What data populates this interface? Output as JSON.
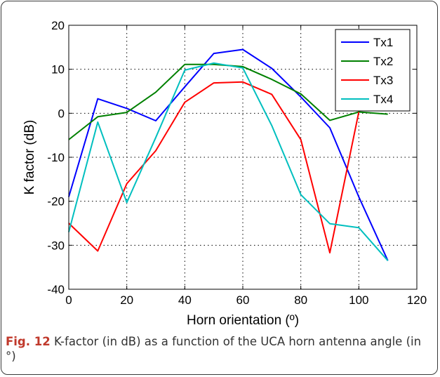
{
  "chart_data": {
    "type": "line",
    "xlabel": "Horn orientation (º)",
    "ylabel": "K factor (dB)",
    "xlim": [
      0,
      120
    ],
    "ylim": [
      -40,
      20
    ],
    "xticks": [
      0,
      20,
      40,
      60,
      80,
      100,
      120
    ],
    "yticks": [
      -40,
      -30,
      -20,
      -10,
      0,
      10,
      20
    ],
    "x_tick_labels": [
      "0",
      "20",
      "40",
      "60",
      "80",
      "100",
      "120"
    ],
    "y_tick_labels": [
      "-40",
      "-30",
      "-20",
      "-10",
      "0",
      "10",
      "20"
    ],
    "grid": true,
    "legend_position": "top-right",
    "x": [
      0,
      10,
      20,
      30,
      40,
      50,
      60,
      70,
      80,
      90,
      100,
      110
    ],
    "series": [
      {
        "name": "Tx1",
        "color": "#0000ff",
        "values": [
          -19,
          3.3,
          1.1,
          -1.7,
          6,
          13.6,
          14.5,
          10.2,
          3.7,
          -3.3,
          -19,
          -33.5
        ]
      },
      {
        "name": "Tx2",
        "color": "#008000",
        "values": [
          -6,
          -0.8,
          0.2,
          4.8,
          11.1,
          11.1,
          10.6,
          7.7,
          4.4,
          -1.6,
          0.3,
          -0.2
        ]
      },
      {
        "name": "Tx3",
        "color": "#ff0000",
        "values": [
          -25,
          -31.3,
          -16,
          -8.5,
          2.5,
          6.9,
          7.1,
          4.3,
          -6,
          -31.7,
          0.3,
          null
        ]
      },
      {
        "name": "Tx4",
        "color": "#00bfbf",
        "values": [
          -27,
          -2,
          -20.3,
          -5.5,
          9.8,
          11.4,
          10.3,
          -2.8,
          -18.5,
          -25.1,
          -26,
          -33.5
        ]
      }
    ]
  },
  "caption": {
    "label": "Fig. 12",
    "text": " K-factor (in dB) as a function of the UCA horn antenna angle (in °)"
  }
}
